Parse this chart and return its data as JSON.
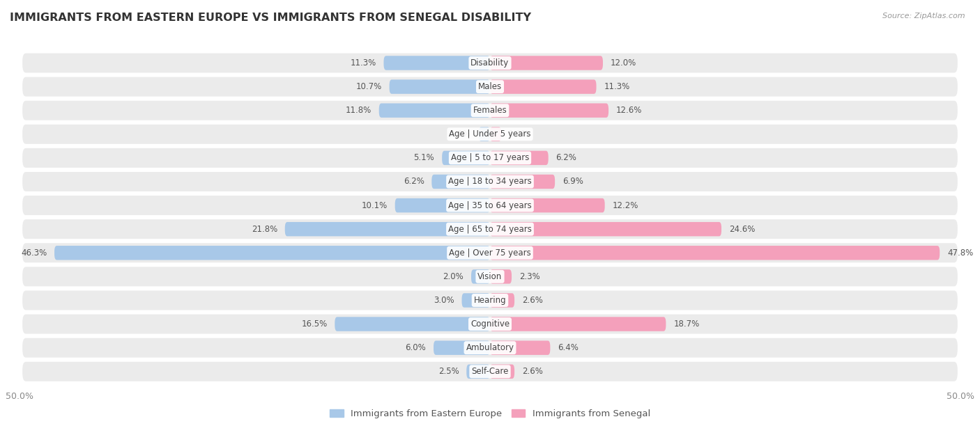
{
  "title": "IMMIGRANTS FROM EASTERN EUROPE VS IMMIGRANTS FROM SENEGAL DISABILITY",
  "source": "Source: ZipAtlas.com",
  "categories": [
    "Disability",
    "Males",
    "Females",
    "Age | Under 5 years",
    "Age | 5 to 17 years",
    "Age | 18 to 34 years",
    "Age | 35 to 64 years",
    "Age | 65 to 74 years",
    "Age | Over 75 years",
    "Vision",
    "Hearing",
    "Cognitive",
    "Ambulatory",
    "Self-Care"
  ],
  "left_values": [
    11.3,
    10.7,
    11.8,
    1.2,
    5.1,
    6.2,
    10.1,
    21.8,
    46.3,
    2.0,
    3.0,
    16.5,
    6.0,
    2.5
  ],
  "right_values": [
    12.0,
    11.3,
    12.6,
    1.2,
    6.2,
    6.9,
    12.2,
    24.6,
    47.8,
    2.3,
    2.6,
    18.7,
    6.4,
    2.6
  ],
  "left_color": "#a8c8e8",
  "right_color": "#f4a0bb",
  "axis_limit": 50.0,
  "row_bg_color": "#ebebeb",
  "title_fontsize": 11.5,
  "value_fontsize": 8.5,
  "cat_fontsize": 8.5,
  "legend_label_left": "Immigrants from Eastern Europe",
  "legend_label_right": "Immigrants from Senegal",
  "bar_height": 0.6
}
